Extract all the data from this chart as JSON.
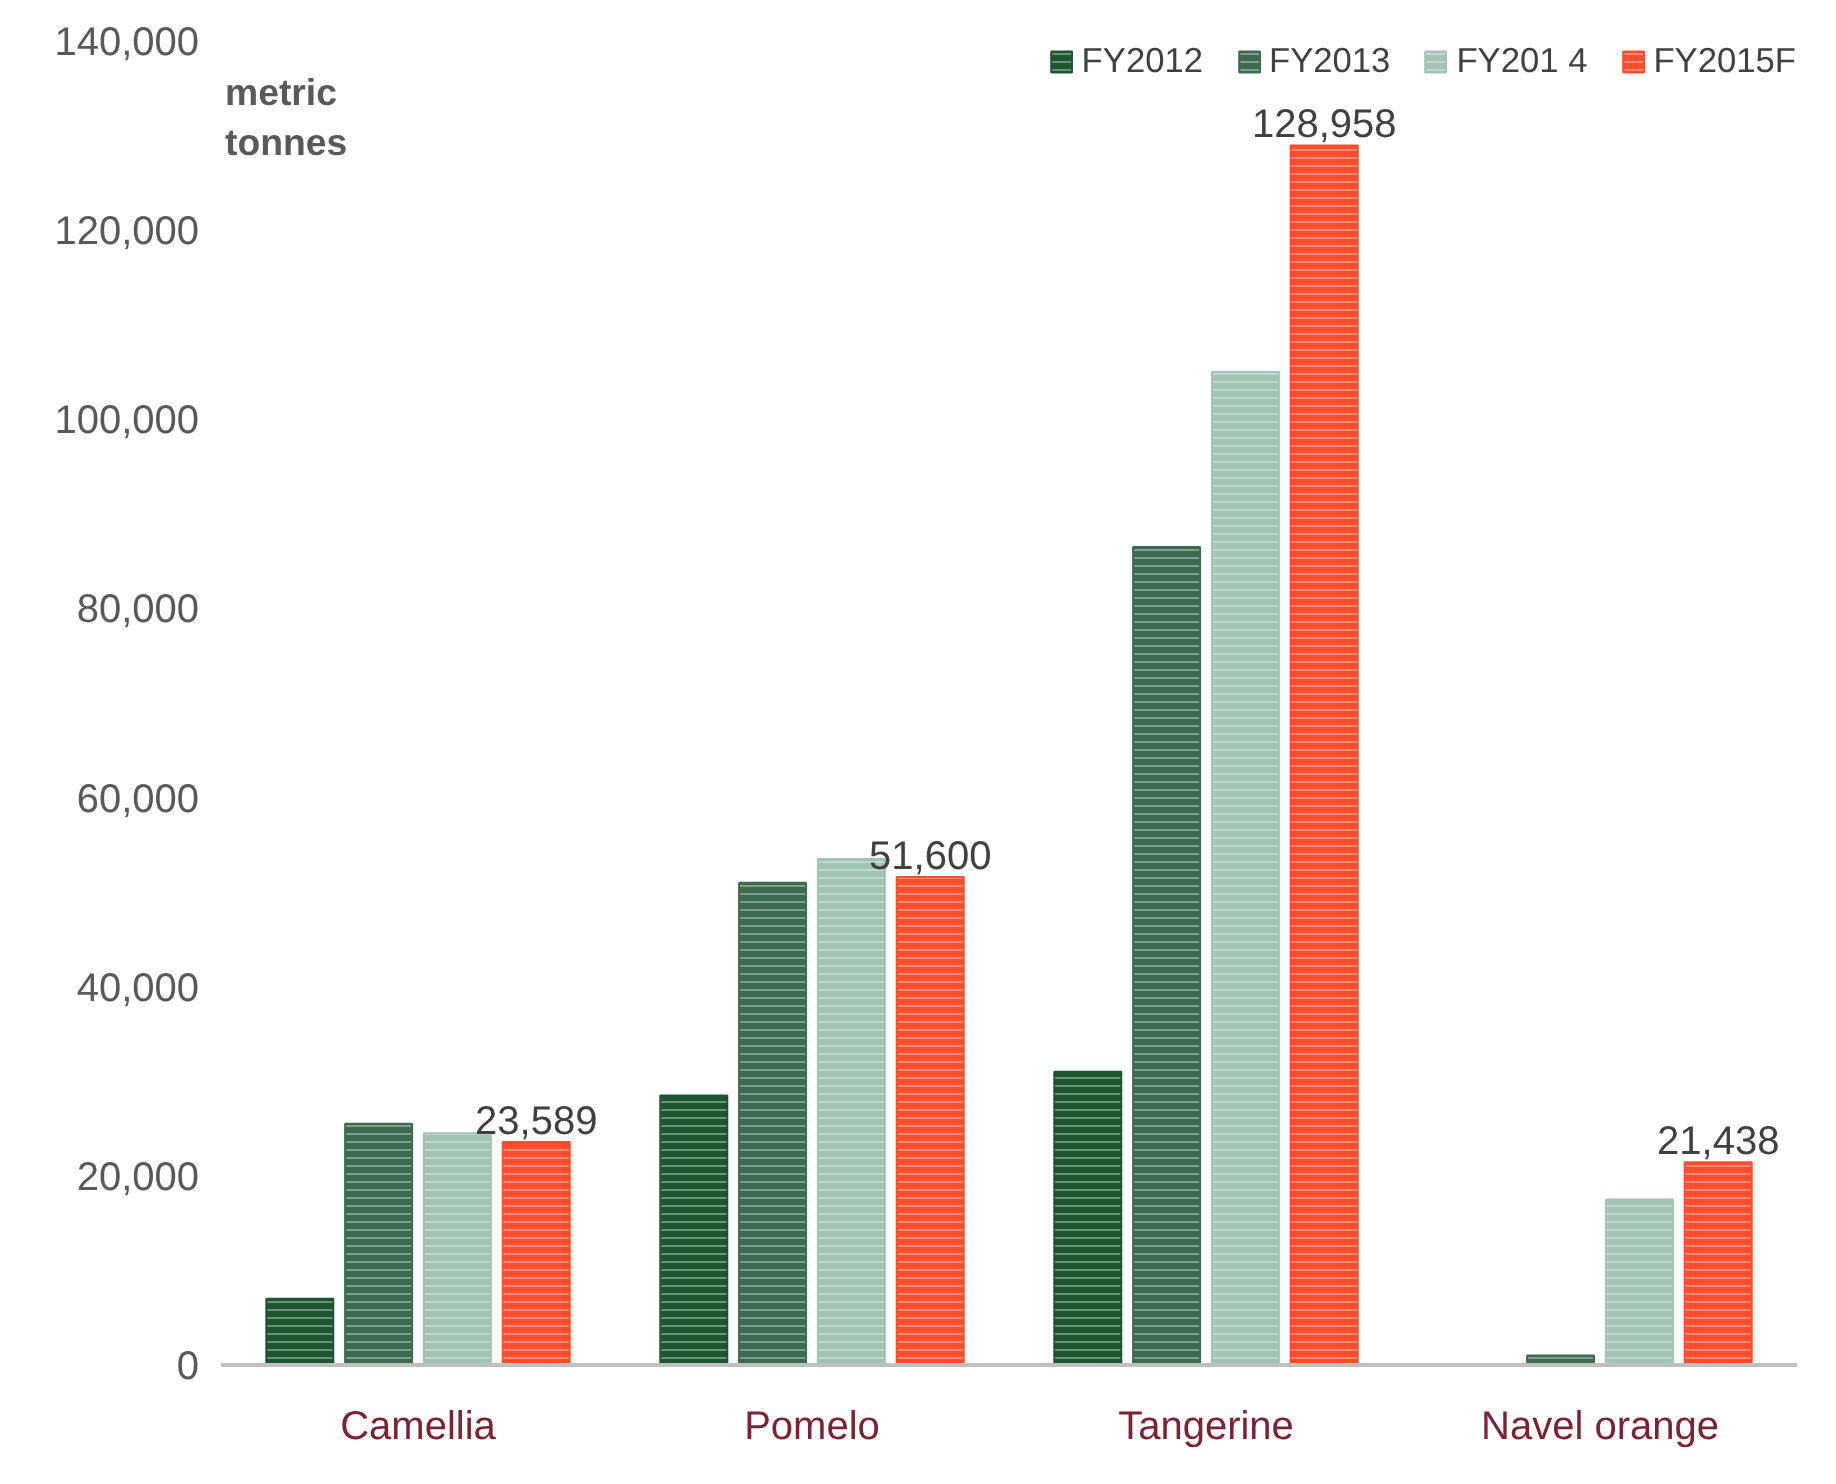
{
  "chart_data": {
    "type": "bar",
    "ylabel": "metric tonnes",
    "categories": [
      "Camellia",
      "Pomelo",
      "Tangerine",
      "Navel orange"
    ],
    "series": [
      {
        "name": "FY2012",
        "color": "#1e5631",
        "values": [
          7000,
          28500,
          31000,
          null
        ]
      },
      {
        "name": "FY2013",
        "color": "#3d6b4f",
        "values": [
          25500,
          51000,
          86500,
          1000
        ]
      },
      {
        "name": "FY201 4",
        "color": "#a3c4b5",
        "values": [
          24500,
          53500,
          105000,
          17500
        ]
      },
      {
        "name": "FY2015F",
        "color": "#ff4c2c",
        "values": [
          23589,
          51600,
          128958,
          21438
        ],
        "value_labels": [
          "23,589",
          "51,600",
          "128,958",
          "21,438"
        ]
      }
    ],
    "ylim": [
      0,
      140000
    ],
    "yticks": [
      {
        "value": 0,
        "label": "0"
      },
      {
        "value": 20000,
        "label": "20,000"
      },
      {
        "value": 40000,
        "label": "40,000"
      },
      {
        "value": 60000,
        "label": "60,000"
      },
      {
        "value": 80000,
        "label": "80,000"
      },
      {
        "value": 100000,
        "label": "100,000"
      },
      {
        "value": 120000,
        "label": "120,000"
      },
      {
        "value": 140000,
        "label": "140,000"
      }
    ],
    "grid": false,
    "legend": "top"
  }
}
